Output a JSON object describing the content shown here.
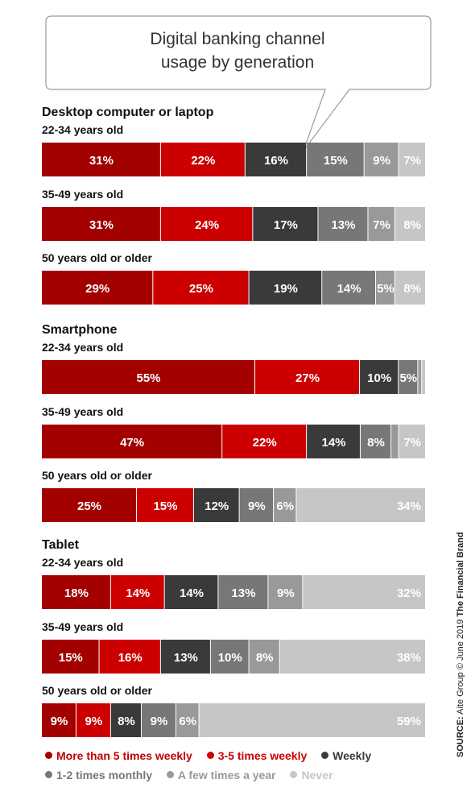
{
  "title_lines": [
    "Digital banking channel",
    "usage by generation"
  ],
  "source": {
    "label": "SOURCE:",
    "text": "Aite Group © June 2019",
    "brand": "The Financial Brand"
  },
  "chart_data": {
    "type": "bar",
    "orientation": "horizontal-stacked-100",
    "title": "Digital banking channel usage by generation",
    "series": [
      {
        "name": "More than 5 times weekly",
        "color": "#a30000",
        "text_color": "#c00000"
      },
      {
        "name": "3-5 times weekly",
        "color": "#cc0000",
        "text_color": "#cc0000"
      },
      {
        "name": "Weekly",
        "color": "#3a3a3a",
        "text_color": "#3a3a3a"
      },
      {
        "name": "1-2 times monthly",
        "color": "#777777",
        "text_color": "#777777"
      },
      {
        "name": "A few times a year",
        "color": "#999999",
        "text_color": "#999999"
      },
      {
        "name": "Never",
        "color": "#c6c6c6",
        "text_color": "#c6c6c6"
      }
    ],
    "groups": [
      {
        "name": "Desktop computer or laptop",
        "rows": [
          {
            "label": "22-34 years old",
            "values": [
              31,
              22,
              16,
              15,
              9,
              7
            ],
            "labels": [
              "31%",
              "22%",
              "16%",
              "15%",
              "9%",
              "7%"
            ]
          },
          {
            "label": "35-49 years old",
            "values": [
              31,
              24,
              17,
              13,
              7,
              8
            ],
            "labels": [
              "31%",
              "24%",
              "17%",
              "13%",
              "7%",
              "8%"
            ]
          },
          {
            "label": "50 years old or older",
            "values": [
              29,
              25,
              19,
              14,
              5,
              8
            ],
            "labels": [
              "29%",
              "25%",
              "19%",
              "14%",
              "5%",
              "8%"
            ]
          }
        ]
      },
      {
        "name": "Smartphone",
        "rows": [
          {
            "label": "22-34 years old",
            "values": [
              55,
              27,
              10,
              5,
              1,
              1
            ],
            "labels": [
              "55%",
              "27%",
              "10%",
              "5%",
              "",
              ""
            ]
          },
          {
            "label": "35-49 years old",
            "values": [
              47,
              22,
              14,
              8,
              2,
              7
            ],
            "labels": [
              "47%",
              "22%",
              "14%",
              "8%",
              "",
              "7%"
            ]
          },
          {
            "label": "50 years old or older",
            "values": [
              25,
              15,
              12,
              9,
              6,
              34
            ],
            "labels": [
              "25%",
              "15%",
              "12%",
              "9%",
              "6%",
              "34%"
            ]
          }
        ]
      },
      {
        "name": "Tablet",
        "rows": [
          {
            "label": "22-34 years old",
            "values": [
              18,
              14,
              14,
              13,
              9,
              32
            ],
            "labels": [
              "18%",
              "14%",
              "14%",
              "13%",
              "9%",
              "32%"
            ]
          },
          {
            "label": "35-49 years old",
            "values": [
              15,
              16,
              13,
              10,
              8,
              38
            ],
            "labels": [
              "15%",
              "16%",
              "13%",
              "10%",
              "8%",
              "38%"
            ]
          },
          {
            "label": "50 years old or older",
            "values": [
              9,
              9,
              8,
              9,
              6,
              59
            ],
            "labels": [
              "9%",
              "9%",
              "8%",
              "9%",
              "6%",
              "59%"
            ]
          }
        ]
      }
    ]
  }
}
